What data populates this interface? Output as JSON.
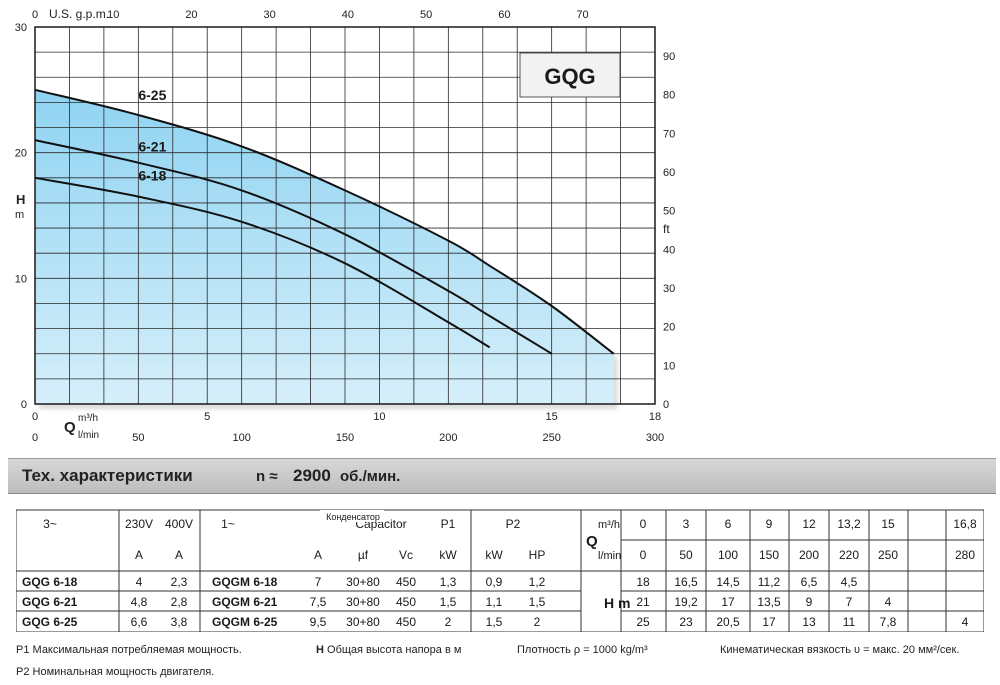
{
  "chart_data": {
    "type": "area",
    "title": "GQG",
    "x_axis_bottom": {
      "label": "Q",
      "unit_primary": "m³/h",
      "unit_secondary": "l/min",
      "range": [
        0,
        18
      ],
      "ticks_m3h": [
        "0",
        "5",
        "10",
        "15",
        "18"
      ],
      "ticks_lmin": [
        "0",
        "50",
        "100",
        "150",
        "200",
        "250",
        "300"
      ]
    },
    "x_axis_top": {
      "label": "U.S. g.p.m.",
      "ticks": [
        "0",
        "10",
        "20",
        "30",
        "40",
        "50",
        "60",
        "70"
      ]
    },
    "y_axis_left": {
      "label": "H",
      "unit": "m",
      "range": [
        0,
        30
      ],
      "ticks": [
        "0",
        "10",
        "20",
        "30"
      ]
    },
    "y_axis_right": {
      "unit": "ft",
      "ticks": [
        "0",
        "10",
        "20",
        "30",
        "40",
        "50",
        "60",
        "70",
        "80",
        "90"
      ]
    },
    "grid": true,
    "series": [
      {
        "name": "6-25",
        "x": [
          0,
          3,
          6,
          9,
          12,
          13.2,
          15,
          16.8
        ],
        "y": [
          25,
          23,
          20.5,
          17,
          13,
          11,
          7.8,
          4
        ]
      },
      {
        "name": "6-21",
        "x": [
          0,
          3,
          6,
          9,
          12,
          13.2,
          15
        ],
        "y": [
          21,
          19.2,
          17,
          13.5,
          9,
          7,
          4
        ]
      },
      {
        "name": "6-18",
        "x": [
          0,
          3,
          6,
          9,
          12,
          13.2
        ],
        "y": [
          18,
          16.5,
          14.5,
          11.2,
          6.5,
          4.5
        ]
      }
    ]
  },
  "banner": {
    "title": "Тех. характеристики",
    "speed_symbol": "n ≈",
    "speed_value": "2900",
    "speed_unit": "об./мин."
  },
  "spec_table": {
    "phase3": "3~",
    "v230": "230V",
    "v400": "400V",
    "amp": "A",
    "phase1": "1~",
    "capacitor_ru": "Конденсатор",
    "capacitor_en": "Capacitor",
    "p1": "P1",
    "p2": "P2",
    "uf": "µf",
    "vc": "Vc",
    "kw": "kW",
    "hp": "HP",
    "q": "Q",
    "unit_m3h": "m³/h",
    "unit_lmin": "l/min",
    "hm": "H m",
    "q_m3h": [
      "0",
      "3",
      "6",
      "9",
      "12",
      "13,2",
      "15",
      "16,8"
    ],
    "q_lmin": [
      "0",
      "50",
      "100",
      "150",
      "200",
      "220",
      "250",
      "280"
    ],
    "rows": [
      {
        "model3": "GQG 6-18",
        "a230": "4",
        "a400": "2,3",
        "model1": "GQGM 6-18",
        "a1": "7",
        "uf": "30+80",
        "vc": "450",
        "p1": "1,3",
        "p2kw": "0,9",
        "p2hp": "1,2",
        "h": [
          "18",
          "16,5",
          "14,5",
          "11,2",
          "6,5",
          "4,5",
          "",
          ""
        ]
      },
      {
        "model3": "GQG 6-21",
        "a230": "4,8",
        "a400": "2,8",
        "model1": "GQGM 6-21",
        "a1": "7,5",
        "uf": "30+80",
        "vc": "450",
        "p1": "1,5",
        "p2kw": "1,1",
        "p2hp": "1,5",
        "h": [
          "21",
          "19,2",
          "17",
          "13,5",
          "9",
          "7",
          "4",
          ""
        ]
      },
      {
        "model3": "GQG 6-25",
        "a230": "6,6",
        "a400": "3,8",
        "model1": "GQGM 6-25",
        "a1": "9,5",
        "uf": "30+80",
        "vc": "450",
        "p1": "2",
        "p2kw": "1,5",
        "p2hp": "2",
        "h": [
          "25",
          "23",
          "20,5",
          "17",
          "13",
          "11",
          "7,8",
          "4"
        ]
      }
    ]
  },
  "footnotes": {
    "p1_sym": "P1",
    "p1_text": "Максимальная потребляемая мощность.",
    "h_sym": "H",
    "h_text": "Общая высота напора в м",
    "density": "Плотность ρ = 1000 kg/m³",
    "viscosity": "Кинематическая вязкость υ = макс. 20 мм²/сек.",
    "p2_sym": "P2",
    "p2_text": "Номинальная мощность двигателя."
  },
  "colors": {
    "area_top": "#8fd3f2",
    "area_bottom": "#d6effa",
    "curve": "#111111",
    "grid": "#2a2a2a",
    "title_box": "#f2f2f2"
  }
}
